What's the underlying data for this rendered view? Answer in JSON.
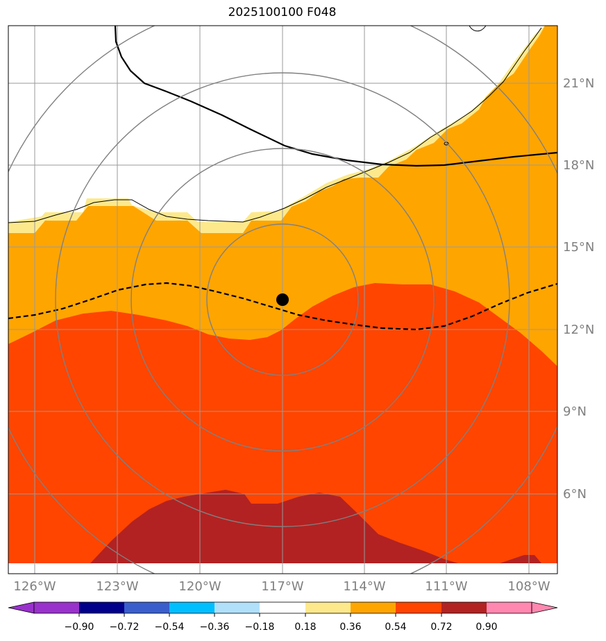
{
  "title": "2025100100 F048",
  "map": {
    "lon_labels": [
      "126°W",
      "123°W",
      "120°W",
      "117°W",
      "114°W",
      "111°W",
      "108°W"
    ],
    "lat_labels": [
      "21°N",
      "18°N",
      "15°N",
      "12°N",
      "9°N",
      "6°N"
    ],
    "storm_center": {
      "lon": -117.0,
      "lat": 13.1
    },
    "range_rings": 4,
    "colors": {
      "frame": "#000000",
      "grid": "#9a9a9a",
      "rings": "#808080",
      "band_0_18_0_36": "#fde98c",
      "band_0_36_0_54": "#ffa500",
      "band_0_54_0_72": "#ff4500",
      "band_0_72_0_90": "#b22222",
      "label": "#808080"
    }
  },
  "colorbar": {
    "tick_labels": [
      "−0.90",
      "−0.72",
      "−0.54",
      "−0.36",
      "−0.18",
      "0.18",
      "0.36",
      "0.54",
      "0.72",
      "0.90"
    ],
    "colors": [
      "#9932cc",
      "#00008b",
      "#3a5fcd",
      "#00bfff",
      "#b0e0fa",
      "#ffffff",
      "#fde98c",
      "#ffa500",
      "#ff4500",
      "#b22222",
      "#ff88b0"
    ]
  }
}
